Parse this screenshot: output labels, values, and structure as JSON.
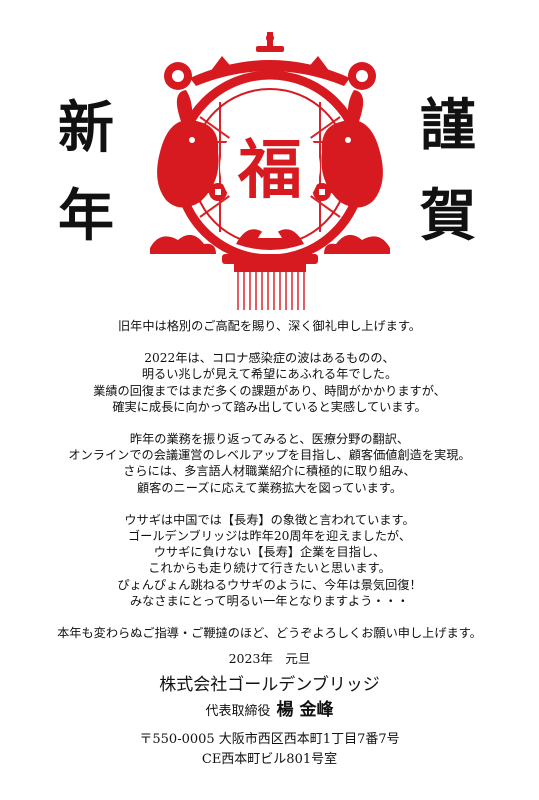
{
  "headline": {
    "left_top": "新",
    "left_bottom": "年",
    "right_top": "謹",
    "right_bottom": "賀"
  },
  "lantern": {
    "center_character": "福",
    "accent_color": "#d71920"
  },
  "paragraphs": [
    [
      "旧年中は格別のご高配を賜り、深く御礼申し上げます。"
    ],
    [
      "2022年は、コロナ感染症の波はあるものの、",
      "明るい兆しが見えて希望にあふれる年でした。",
      "業績の回復まではまだ多くの課題があり、時間がかかりますが、",
      "確実に成長に向かって踏み出していると実感しています。"
    ],
    [
      "昨年の業務を振り返ってみると、医療分野の翻訳、",
      "オンラインでの会議運営のレベルアップを目指し、顧客価値創造を実現。",
      "さらには、多言語人材職業紹介に積極的に取り組み、",
      "顧客のニーズに応えて業務拡大を図っています。"
    ],
    [
      "ウサギは中国では【長寿】の象徴と言われています。",
      "ゴールデンブリッジは昨年20周年を迎えましたが、",
      "ウサギに負けない【長寿】企業を目指し、",
      "これからも走り続けて行きたいと思います。",
      "ぴょんぴょん跳ねるウサギのように、今年は景気回復！",
      "みなさまにとって明るい一年となりますよう・・・"
    ],
    [
      "本年も変わらぬご指導・ご鞭撻のほど、どうぞよろしくお願い申し上げます。"
    ]
  ],
  "footer": {
    "date": "2023年　元旦",
    "company": "株式会社ゴールデンブリッジ",
    "rep_title": "代表取締役",
    "rep_name": "楊 金峰",
    "address_line1": "〒550-0005 大阪市西区西本町1丁目7番7号",
    "address_line2": "CE西本町ビル801号室"
  }
}
